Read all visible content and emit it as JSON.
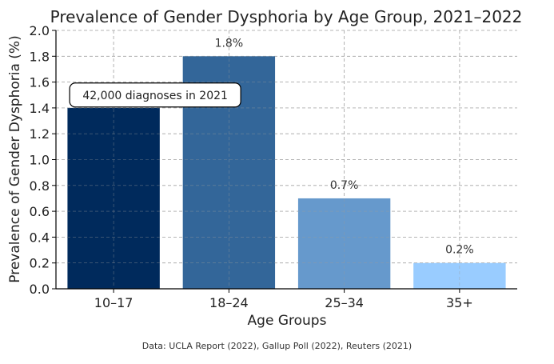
{
  "chart_data": {
    "type": "bar",
    "title": "Prevalence of Gender Dysphoria by Age Group, 2021–2022",
    "xlabel": "Age Groups",
    "ylabel": "Prevalence of Gender Dysphoria (%)",
    "categories": [
      "10–17",
      "18–24",
      "25–34",
      "35+"
    ],
    "values": [
      1.4,
      1.8,
      0.7,
      0.2
    ],
    "bar_colors": [
      "#002a5c",
      "#336699",
      "#6699cc",
      "#99ccff"
    ],
    "data_labels": [
      "",
      "1.8%",
      "0.7%",
      "0.2%"
    ],
    "annotation": {
      "text": "42,000 diagnoses in 2021",
      "category": "10–17",
      "y": 1.5
    },
    "ylim": [
      0,
      2.0
    ],
    "yticks": [
      "0.0",
      "0.2",
      "0.4",
      "0.6",
      "0.8",
      "1.0",
      "1.2",
      "1.4",
      "1.6",
      "1.8",
      "2.0"
    ],
    "grid": true
  },
  "source_note": "Data: UCLA Report (2022), Gallup Poll (2022), Reuters (2021)"
}
